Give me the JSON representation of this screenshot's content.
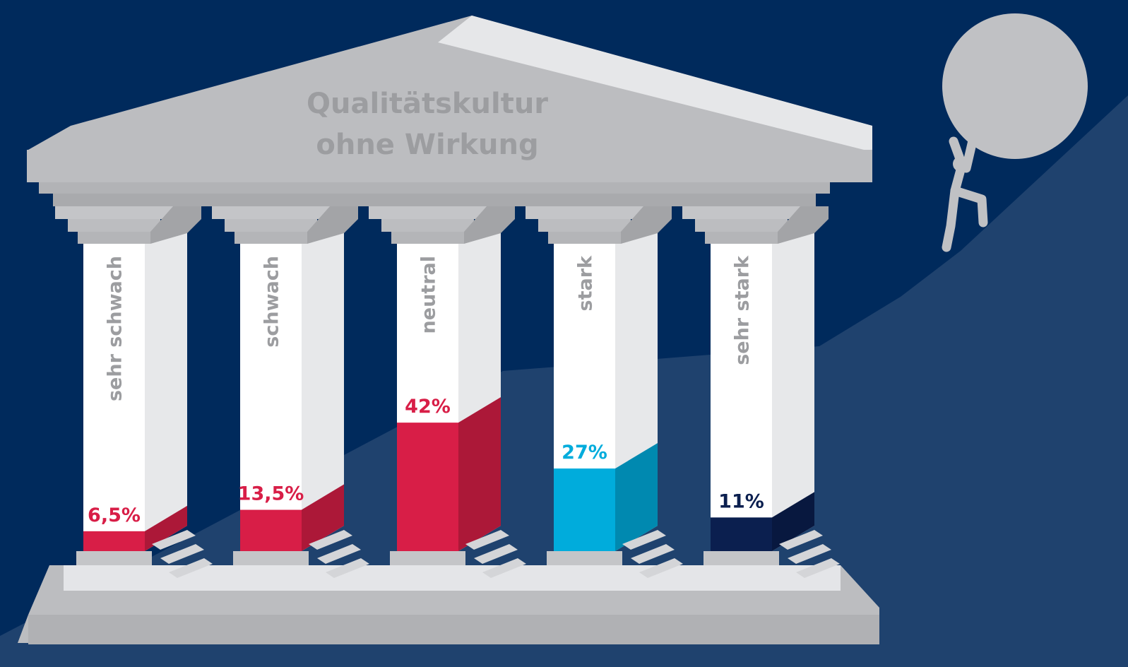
{
  "chart_data": {
    "type": "bar",
    "title": [
      "Qualitätskultur",
      "ohne Wirkung"
    ],
    "categories": [
      "sehr schwach",
      "schwach",
      "neutral",
      "stark",
      "sehr stark"
    ],
    "values": [
      6.5,
      13.5,
      42,
      27,
      11
    ],
    "value_labels": [
      "6,5%",
      "13,5%",
      "42%",
      "27%",
      "11%"
    ],
    "colors": [
      "#d81e47",
      "#d81e47",
      "#d81e47",
      "#00acdc",
      "#0b1f4f"
    ]
  }
}
